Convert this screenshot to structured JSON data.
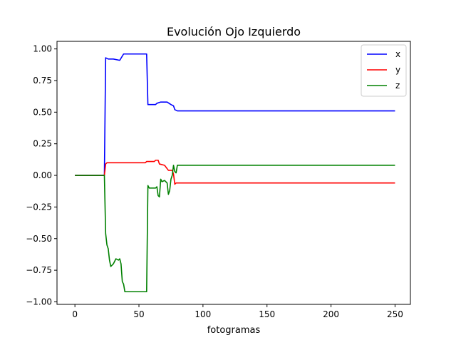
{
  "chart_data": {
    "type": "line",
    "title": "Evolución Ojo Izquierdo",
    "xlabel": "fotogramas",
    "ylabel": "",
    "xlim": [
      -14,
      262
    ],
    "ylim": [
      -1.02,
      1.06
    ],
    "grid": false,
    "legend_position": "top-right",
    "x_ticks": [
      0,
      50,
      100,
      150,
      200,
      250
    ],
    "y_ticks": [
      -1.0,
      -0.75,
      -0.5,
      -0.25,
      0.0,
      0.25,
      0.5,
      0.75,
      1.0
    ],
    "series": [
      {
        "name": "x",
        "color": "#0000ff",
        "points": [
          [
            0,
            0
          ],
          [
            23,
            0
          ],
          [
            24,
            0.93
          ],
          [
            26,
            0.92
          ],
          [
            30,
            0.92
          ],
          [
            35,
            0.91
          ],
          [
            38,
            0.96
          ],
          [
            45,
            0.96
          ],
          [
            56,
            0.96
          ],
          [
            57,
            0.56
          ],
          [
            63,
            0.56
          ],
          [
            64,
            0.57
          ],
          [
            67,
            0.58
          ],
          [
            72,
            0.58
          ],
          [
            75,
            0.56
          ],
          [
            77,
            0.55
          ],
          [
            78,
            0.52
          ],
          [
            80,
            0.51
          ],
          [
            90,
            0.51
          ],
          [
            250,
            0.51
          ]
        ]
      },
      {
        "name": "y",
        "color": "#ff0000",
        "points": [
          [
            0,
            0
          ],
          [
            23,
            0
          ],
          [
            24,
            0.09
          ],
          [
            25,
            0.1
          ],
          [
            35,
            0.1
          ],
          [
            55,
            0.1
          ],
          [
            56,
            0.11
          ],
          [
            62,
            0.11
          ],
          [
            63,
            0.12
          ],
          [
            65,
            0.12
          ],
          [
            66,
            0.09
          ],
          [
            70,
            0.08
          ],
          [
            73,
            0.04
          ],
          [
            76,
            0.04
          ],
          [
            77,
            0.01
          ],
          [
            78,
            -0.07
          ],
          [
            79,
            -0.06
          ],
          [
            80,
            -0.06
          ],
          [
            90,
            -0.06
          ],
          [
            250,
            -0.06
          ]
        ]
      },
      {
        "name": "z",
        "color": "#008000",
        "points": [
          [
            0,
            0
          ],
          [
            23,
            0
          ],
          [
            24,
            -0.46
          ],
          [
            25,
            -0.55
          ],
          [
            26,
            -0.58
          ],
          [
            27,
            -0.67
          ],
          [
            28,
            -0.72
          ],
          [
            30,
            -0.7
          ],
          [
            32,
            -0.66
          ],
          [
            34,
            -0.67
          ],
          [
            35,
            -0.66
          ],
          [
            36,
            -0.7
          ],
          [
            37,
            -0.84
          ],
          [
            38,
            -0.86
          ],
          [
            39,
            -0.92
          ],
          [
            45,
            -0.92
          ],
          [
            50,
            -0.92
          ],
          [
            56,
            -0.92
          ],
          [
            57,
            -0.08
          ],
          [
            58,
            -0.1
          ],
          [
            63,
            -0.1
          ],
          [
            64,
            -0.09
          ],
          [
            65,
            -0.16
          ],
          [
            66,
            -0.17
          ],
          [
            67,
            -0.03
          ],
          [
            68,
            -0.05
          ],
          [
            70,
            -0.04
          ],
          [
            72,
            -0.06
          ],
          [
            73,
            -0.15
          ],
          [
            74,
            -0.12
          ],
          [
            75,
            -0.03
          ],
          [
            76,
            0.0
          ],
          [
            77,
            0.08
          ],
          [
            78,
            0.03
          ],
          [
            79,
            0.02
          ],
          [
            80,
            0.08
          ],
          [
            90,
            0.08
          ],
          [
            250,
            0.08
          ]
        ]
      }
    ]
  }
}
